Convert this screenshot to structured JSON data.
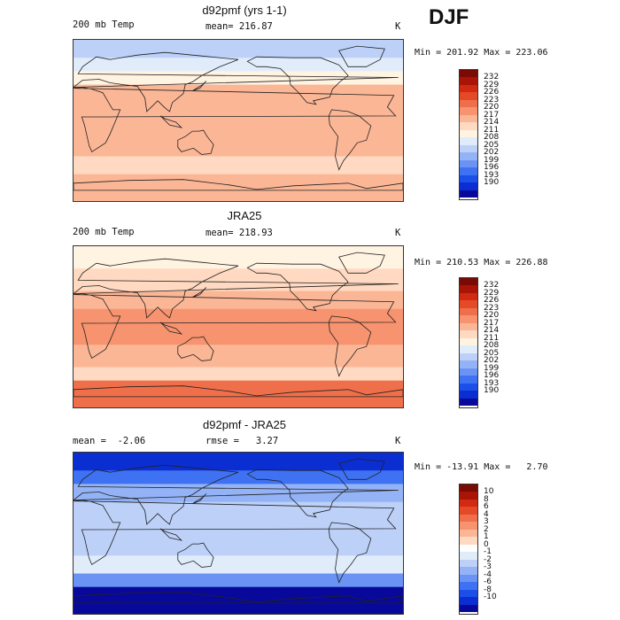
{
  "season": "DJF",
  "colors": {
    "temp_scale": [
      "#08089a",
      "#0b2ed2",
      "#1c4fe8",
      "#3f72f2",
      "#6a93f4",
      "#93b3f6",
      "#bcd0f8",
      "#e1ecfb",
      "#fff3e2",
      "#ffd9c1",
      "#fbb696",
      "#f7936f",
      "#f06f4b",
      "#e54a28",
      "#d12a12",
      "#a81406",
      "#7a0a03"
    ],
    "diff_scale": [
      "#08089a",
      "#0b2ed2",
      "#1c4fe8",
      "#3f72f2",
      "#6a93f4",
      "#93b3f6",
      "#bcd0f8",
      "#e1ecfb",
      "#ffffff",
      "#ffd9c1",
      "#fbb696",
      "#f7936f",
      "#f06f4b",
      "#e54a28",
      "#d12a12",
      "#a81406",
      "#7a0a03"
    ]
  },
  "chart_data": [
    {
      "type": "heatmap",
      "title": "d92pmf (yrs 1-1)",
      "field_label": "200 mb Temp",
      "mean_text": "mean= 216.87",
      "units": "K",
      "minmax_text": "Min = 201.92 Max = 223.06",
      "min": 201.92,
      "max": 223.06,
      "colorbar_labels": [
        "232",
        "229",
        "226",
        "223",
        "220",
        "217",
        "214",
        "211",
        "208",
        "205",
        "202",
        "199",
        "196",
        "193",
        "190"
      ],
      "bands": [
        {
          "lat_range": [
            70,
            90
          ],
          "value": 206
        },
        {
          "lat_range": [
            55,
            70
          ],
          "value": 210
        },
        {
          "lat_range": [
            40,
            55
          ],
          "value": 214
        },
        {
          "lat_range": [
            20,
            40
          ],
          "value": 219
        },
        {
          "lat_range": [
            -20,
            20
          ],
          "value": 220
        },
        {
          "lat_range": [
            -40,
            -20
          ],
          "value": 218
        },
        {
          "lat_range": [
            -60,
            -40
          ],
          "value": 215
        },
        {
          "lat_range": [
            -90,
            -60
          ],
          "value": 218
        }
      ]
    },
    {
      "type": "heatmap",
      "title": "JRA25",
      "field_label": "200 mb Temp",
      "mean_text": "mean= 218.93",
      "units": "K",
      "minmax_text": "Min = 210.53 Max = 226.88",
      "min": 210.53,
      "max": 226.88,
      "colorbar_labels": [
        "232",
        "229",
        "226",
        "223",
        "220",
        "217",
        "214",
        "211",
        "208",
        "205",
        "202",
        "199",
        "196",
        "193",
        "190"
      ],
      "bands": [
        {
          "lat_range": [
            65,
            90
          ],
          "value": 213
        },
        {
          "lat_range": [
            40,
            65
          ],
          "value": 217
        },
        {
          "lat_range": [
            20,
            40
          ],
          "value": 220
        },
        {
          "lat_range": [
            -20,
            20
          ],
          "value": 221
        },
        {
          "lat_range": [
            -45,
            -20
          ],
          "value": 219
        },
        {
          "lat_range": [
            -60,
            -45
          ],
          "value": 217
        },
        {
          "lat_range": [
            -90,
            -60
          ],
          "value": 225
        }
      ]
    },
    {
      "type": "heatmap",
      "title": "d92pmf - JRA25",
      "mean_text": "mean =  -2.06",
      "rmse_text": "rmse =   3.27",
      "units": "K",
      "minmax_text": "Min = -13.91 Max =   2.70",
      "min": -13.91,
      "max": 2.7,
      "colorbar_labels": [
        "10",
        "8",
        "6",
        "4",
        "3",
        "2",
        "1",
        "0",
        "-1",
        "-2",
        "-3",
        "-4",
        "-6",
        "-8",
        "-10"
      ],
      "bands": [
        {
          "lat_range": [
            70,
            90
          ],
          "value": -9
        },
        {
          "lat_range": [
            55,
            70
          ],
          "value": -5
        },
        {
          "lat_range": [
            35,
            55
          ],
          "value": -2.5
        },
        {
          "lat_range": [
            -25,
            35
          ],
          "value": -1.5
        },
        {
          "lat_range": [
            -45,
            -25
          ],
          "value": -0.5
        },
        {
          "lat_range": [
            -60,
            -45
          ],
          "value": -3
        },
        {
          "lat_range": [
            -90,
            -60
          ],
          "value": -10
        }
      ]
    }
  ]
}
